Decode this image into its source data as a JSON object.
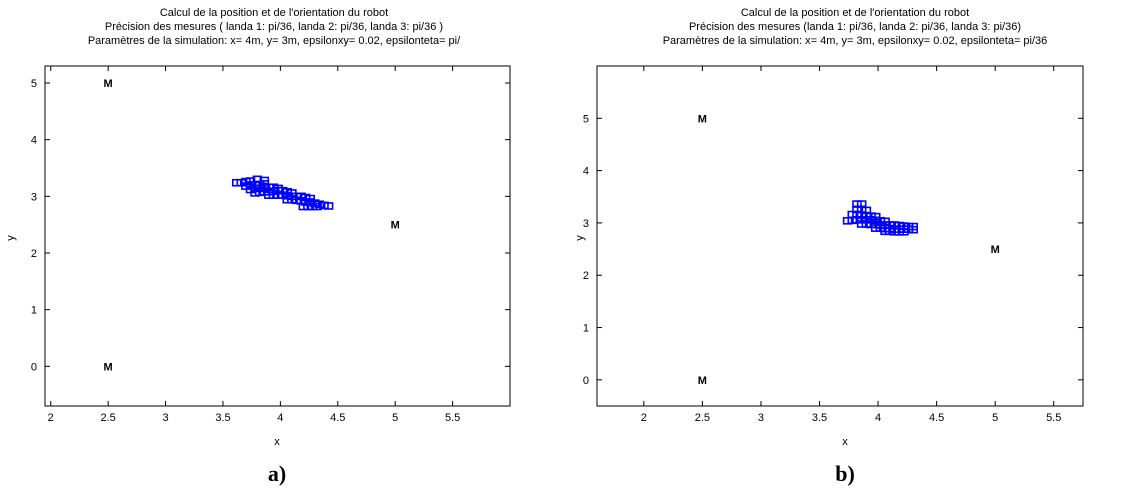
{
  "chart_data": [
    {
      "type": "scatter",
      "title": [
        "Calcul de la position et de l'orientation du robot",
        "Précision des mesures ( landa 1: pi/36, landa 2: pi/36, landa 3: pi/36 )",
        "Paramètres de la simulation: x= 4m, y= 3m, epsilonxy= 0.02, epsilonteta= pi/"
      ],
      "xlabel": "x",
      "ylabel": "y",
      "xlim": [
        1.95,
        6.0
      ],
      "ylim": [
        -0.7,
        5.3
      ],
      "xticks": [
        2,
        2.5,
        3,
        3.5,
        4,
        4.5,
        5,
        5.5
      ],
      "xtick_labels": [
        "2",
        "2.5",
        "3",
        "3.5",
        "4",
        "4.5",
        "5",
        "5.5"
      ],
      "yticks": [
        0,
        1,
        2,
        3,
        4,
        5
      ],
      "ytick_labels": [
        "0",
        "1",
        "2",
        "3",
        "4",
        "5"
      ],
      "landmarks": [
        {
          "label": "M",
          "x": 2.5,
          "y": 5
        },
        {
          "label": "M",
          "x": 5,
          "y": 2.5
        },
        {
          "label": "M",
          "x": 2.5,
          "y": 0
        }
      ],
      "series": [
        {
          "color": "#0000ff",
          "marker": "square",
          "x": [
            3.62,
            3.66,
            3.7,
            3.74,
            3.7,
            3.74,
            3.78,
            3.82,
            3.86,
            3.74,
            3.78,
            3.82,
            3.86,
            3.9,
            3.94,
            3.98,
            3.78,
            3.82,
            3.86,
            3.9,
            3.94,
            3.98,
            4.02,
            4.06,
            4.1,
            3.9,
            3.94,
            3.98,
            4.02,
            4.06,
            4.1,
            4.14,
            4.18,
            4.22,
            4.26,
            4.06,
            4.1,
            4.14,
            4.18,
            4.22,
            4.26,
            4.3,
            4.34,
            4.38,
            4.42,
            4.2,
            4.24,
            4.28,
            4.32,
            3.8,
            3.86
          ],
          "y": [
            3.24,
            3.24,
            3.26,
            3.27,
            3.18,
            3.2,
            3.2,
            3.21,
            3.22,
            3.12,
            3.14,
            3.14,
            3.15,
            3.16,
            3.16,
            3.14,
            3.06,
            3.07,
            3.08,
            3.08,
            3.09,
            3.1,
            3.1,
            3.08,
            3.06,
            3.02,
            3.02,
            3.02,
            3.02,
            3.01,
            3.0,
            3.0,
            3.0,
            2.98,
            2.96,
            2.94,
            2.94,
            2.93,
            2.92,
            2.9,
            2.9,
            2.88,
            2.86,
            2.84,
            2.83,
            2.82,
            2.82,
            2.82,
            2.82,
            3.3,
            3.28
          ]
        }
      ],
      "caption": "a)"
    },
    {
      "type": "scatter",
      "title": [
        "Calcul de la position et de l'orientation du robot",
        "Précision des mesures (landa 1: pi/36, landa 2: pi/36, landa 3: pi/36)",
        "Paramètres de la simulation: x= 4m, y= 3m, epsilonxy= 0.02, epsilonteta= pi/36"
      ],
      "xlabel": "x",
      "ylabel": "y",
      "xlim": [
        1.6,
        5.75
      ],
      "ylim": [
        -0.5,
        6.0
      ],
      "xticks": [
        2,
        2.5,
        3,
        3.5,
        4,
        4.5,
        5,
        5.5
      ],
      "xtick_labels": [
        "2",
        "2.5",
        "3",
        "3.5",
        "4",
        "4.5",
        "5",
        "5.5"
      ],
      "yticks": [
        0,
        1,
        2,
        3,
        4,
        5
      ],
      "ytick_labels": [
        "0",
        "1",
        "2",
        "3",
        "4",
        "5"
      ],
      "landmarks": [
        {
          "label": "M",
          "x": 2.5,
          "y": 5
        },
        {
          "label": "M",
          "x": 5,
          "y": 2.5
        },
        {
          "label": "M",
          "x": 2.5,
          "y": 0
        }
      ],
      "series": [
        {
          "color": "#0000ff",
          "marker": "square",
          "x": [
            3.82,
            3.86,
            3.82,
            3.86,
            3.9,
            3.78,
            3.82,
            3.86,
            3.9,
            3.94,
            3.98,
            3.74,
            3.78,
            3.82,
            3.86,
            3.9,
            3.94,
            3.98,
            4.02,
            4.06,
            3.86,
            3.9,
            3.94,
            3.98,
            4.02,
            4.06,
            4.1,
            4.14,
            4.18,
            4.22,
            4.26,
            4.3,
            3.98,
            4.02,
            4.06,
            4.1,
            4.14,
            4.18,
            4.22,
            4.26,
            4.3,
            4.06,
            4.1,
            4.14,
            4.18,
            4.22
          ],
          "y": [
            3.36,
            3.36,
            3.26,
            3.26,
            3.24,
            3.16,
            3.16,
            3.15,
            3.14,
            3.13,
            3.12,
            3.04,
            3.05,
            3.06,
            3.06,
            3.06,
            3.06,
            3.05,
            3.04,
            3.03,
            2.98,
            2.98,
            2.97,
            2.97,
            2.96,
            2.96,
            2.96,
            2.96,
            2.95,
            2.94,
            2.93,
            2.93,
            2.9,
            2.9,
            2.89,
            2.89,
            2.88,
            2.88,
            2.88,
            2.88,
            2.87,
            2.84,
            2.84,
            2.83,
            2.83,
            2.83
          ]
        }
      ],
      "caption": "b)"
    }
  ]
}
